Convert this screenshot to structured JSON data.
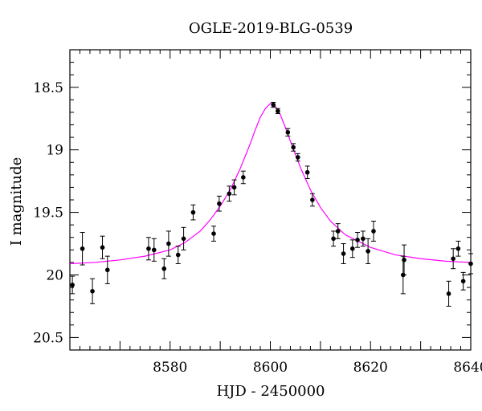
{
  "chart_data": {
    "type": "scatter",
    "title": "OGLE-2019-BLG-0539",
    "xlabel": "HJD - 2450000",
    "ylabel": "I magnitude",
    "xlim": [
      8560,
      8640
    ],
    "ylim": [
      20.6,
      18.2
    ],
    "y_inverted": true,
    "x_ticks": [
      8580,
      8600,
      8620,
      8640
    ],
    "y_ticks": [
      18.5,
      19,
      19.5,
      20,
      20.5
    ],
    "x_tick_labels": [
      "8580",
      "8600",
      "8620",
      "8640"
    ],
    "y_tick_labels": [
      "18.5",
      "19",
      "19.5",
      "20",
      "20.5"
    ],
    "grid": false,
    "series": [
      {
        "kind": "points_with_errorbars",
        "color": "#000000",
        "points": [
          {
            "x": 8560.5,
            "y": 20.08,
            "err": 0.07
          },
          {
            "x": 8562.5,
            "y": 19.79,
            "err": 0.13
          },
          {
            "x": 8564.5,
            "y": 20.13,
            "err": 0.1
          },
          {
            "x": 8566.5,
            "y": 19.78,
            "err": 0.09
          },
          {
            "x": 8567.5,
            "y": 19.96,
            "err": 0.11
          },
          {
            "x": 8575.7,
            "y": 19.79,
            "err": 0.09
          },
          {
            "x": 8576.8,
            "y": 19.8,
            "err": 0.09
          },
          {
            "x": 8578.8,
            "y": 19.95,
            "err": 0.08
          },
          {
            "x": 8579.7,
            "y": 19.75,
            "err": 0.1
          },
          {
            "x": 8581.6,
            "y": 19.84,
            "err": 0.07
          },
          {
            "x": 8582.7,
            "y": 19.71,
            "err": 0.09
          },
          {
            "x": 8584.6,
            "y": 19.5,
            "err": 0.06
          },
          {
            "x": 8588.7,
            "y": 19.67,
            "err": 0.06
          },
          {
            "x": 8589.8,
            "y": 19.43,
            "err": 0.06
          },
          {
            "x": 8591.8,
            "y": 19.35,
            "err": 0.06
          },
          {
            "x": 8592.8,
            "y": 19.3,
            "err": 0.06
          },
          {
            "x": 8594.6,
            "y": 19.22,
            "err": 0.05
          },
          {
            "x": 8600.6,
            "y": 18.64,
            "err": 0.02
          },
          {
            "x": 8601.5,
            "y": 18.69,
            "err": 0.02
          },
          {
            "x": 8603.5,
            "y": 18.86,
            "err": 0.03
          },
          {
            "x": 8604.6,
            "y": 18.98,
            "err": 0.03
          },
          {
            "x": 8605.5,
            "y": 19.06,
            "err": 0.03
          },
          {
            "x": 8607.4,
            "y": 19.18,
            "err": 0.05
          },
          {
            "x": 8608.4,
            "y": 19.4,
            "err": 0.05
          },
          {
            "x": 8612.6,
            "y": 19.71,
            "err": 0.06
          },
          {
            "x": 8613.5,
            "y": 19.65,
            "err": 0.06
          },
          {
            "x": 8614.6,
            "y": 19.83,
            "err": 0.08
          },
          {
            "x": 8616.4,
            "y": 19.79,
            "err": 0.07
          },
          {
            "x": 8617.4,
            "y": 19.72,
            "err": 0.06
          },
          {
            "x": 8618.5,
            "y": 19.71,
            "err": 0.06
          },
          {
            "x": 8619.5,
            "y": 19.81,
            "err": 0.1
          },
          {
            "x": 8620.6,
            "y": 19.65,
            "err": 0.08
          },
          {
            "x": 8626.5,
            "y": 20.0,
            "err": 0.15
          },
          {
            "x": 8626.7,
            "y": 19.88,
            "err": 0.12
          },
          {
            "x": 8635.6,
            "y": 20.15,
            "err": 0.1
          },
          {
            "x": 8636.5,
            "y": 19.87,
            "err": 0.08
          },
          {
            "x": 8637.5,
            "y": 19.79,
            "err": 0.06
          },
          {
            "x": 8638.5,
            "y": 20.05,
            "err": 0.07
          },
          {
            "x": 8640.0,
            "y": 19.91,
            "err": 0.08
          }
        ]
      },
      {
        "kind": "model_curve",
        "color": "#ff00ff",
        "x": [
          8560,
          8565,
          8570,
          8575,
          8580,
          8583,
          8586,
          8588,
          8590,
          8592,
          8594,
          8596,
          8597,
          8598,
          8599,
          8600,
          8600.5,
          8601,
          8602,
          8603,
          8604,
          8606,
          8608,
          8610,
          8612,
          8615,
          8620,
          8625,
          8630,
          8635,
          8640
        ],
        "y": [
          19.91,
          19.9,
          19.88,
          19.85,
          19.8,
          19.74,
          19.65,
          19.56,
          19.45,
          19.32,
          19.15,
          18.95,
          18.84,
          18.74,
          18.67,
          18.63,
          18.63,
          18.65,
          18.72,
          18.82,
          18.93,
          19.14,
          19.32,
          19.46,
          19.57,
          19.68,
          19.78,
          19.84,
          19.87,
          19.89,
          19.9
        ]
      }
    ]
  }
}
